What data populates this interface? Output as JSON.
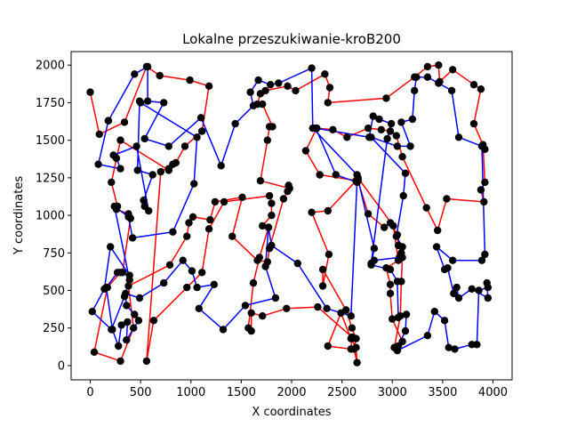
{
  "chart_data": {
    "type": "line",
    "title": "Lokalne przeszukiwanie-kroB200",
    "xlabel": "X coordinates",
    "ylabel": "Y coordinates",
    "xlim": [
      -190,
      4190
    ],
    "ylim": [
      -95,
      2090
    ],
    "xticks": [
      0,
      500,
      1000,
      1500,
      2000,
      2500,
      3000,
      3500,
      4000
    ],
    "yticks": [
      0,
      250,
      500,
      750,
      1000,
      1250,
      1500,
      1750,
      2000
    ],
    "grid": false,
    "legend": "none",
    "marker_color": "#000000",
    "series": [
      {
        "color": "#ff0000",
        "points": [
          [
            0,
            1820
          ],
          [
            90,
            1540
          ],
          [
            340,
            1620
          ],
          [
            560,
            1990
          ],
          [
            690,
            1930
          ],
          [
            990,
            1900
          ],
          [
            1180,
            1860
          ],
          [
            1110,
            1560
          ],
          [
            940,
            1460
          ],
          [
            850,
            1350
          ],
          [
            780,
            1300
          ],
          [
            300,
            1500
          ],
          [
            210,
            1220
          ],
          [
            270,
            1060
          ],
          [
            260,
            1040
          ],
          [
            380,
            1010
          ],
          [
            400,
            980
          ],
          [
            320,
            620
          ],
          [
            300,
            620
          ],
          [
            170,
            520
          ],
          [
            40,
            90
          ],
          [
            300,
            30
          ],
          [
            430,
            250
          ],
          [
            380,
            530
          ],
          [
            790,
            670
          ],
          [
            960,
            860
          ],
          [
            980,
            950
          ],
          [
            1020,
            990
          ],
          [
            1190,
            970
          ],
          [
            1240,
            1090
          ],
          [
            1510,
            1120
          ],
          [
            1410,
            860
          ],
          [
            1660,
            700
          ],
          [
            1760,
            690
          ],
          [
            1780,
            780
          ],
          [
            1920,
            1110
          ],
          [
            1960,
            1160
          ],
          [
            1970,
            1200
          ],
          [
            1980,
            1180
          ],
          [
            1690,
            1230
          ],
          [
            1760,
            1500
          ],
          [
            1780,
            1590
          ],
          [
            1810,
            1590
          ],
          [
            1710,
            1740
          ],
          [
            1660,
            1740
          ],
          [
            1690,
            1810
          ],
          [
            1740,
            1830
          ],
          [
            1960,
            1860
          ],
          [
            2040,
            1830
          ],
          [
            2330,
            1940
          ],
          [
            2380,
            1850
          ],
          [
            2360,
            1750
          ],
          [
            2940,
            1780
          ],
          [
            3220,
            1920
          ],
          [
            3350,
            1990
          ],
          [
            3460,
            2000
          ],
          [
            3470,
            1890
          ],
          [
            3600,
            1970
          ],
          [
            3810,
            1870
          ],
          [
            3880,
            1840
          ],
          [
            3810,
            1610
          ],
          [
            3920,
            1440
          ],
          [
            3900,
            1470
          ],
          [
            3920,
            1220
          ],
          [
            3880,
            1170
          ],
          [
            3910,
            1090
          ],
          [
            3540,
            1110
          ],
          [
            3450,
            900
          ],
          [
            3340,
            1050
          ],
          [
            3100,
            1390
          ],
          [
            3040,
            1530
          ],
          [
            2980,
            1560
          ],
          [
            2890,
            1570
          ],
          [
            2760,
            1580
          ],
          [
            2550,
            1520
          ],
          [
            2410,
            1570
          ],
          [
            2250,
            1580
          ],
          [
            2140,
            1430
          ],
          [
            2280,
            1270
          ],
          [
            2660,
            1230
          ],
          [
            2760,
            1010
          ],
          [
            2920,
            920
          ],
          [
            2980,
            950
          ],
          [
            3050,
            870
          ],
          [
            3060,
            800
          ],
          [
            3090,
            750
          ],
          [
            3100,
            720
          ],
          [
            3090,
            560
          ],
          [
            3080,
            330
          ],
          [
            3020,
            120
          ],
          [
            3100,
            160
          ],
          [
            3000,
            310
          ],
          [
            2980,
            480
          ],
          [
            2980,
            540
          ],
          [
            2940,
            650
          ],
          [
            3060,
            700
          ],
          [
            3010,
            930
          ],
          [
            2660,
            1250
          ],
          [
            2640,
            1230
          ],
          [
            2360,
            1030
          ],
          [
            2200,
            1020
          ],
          [
            2370,
            740
          ],
          [
            2310,
            530
          ],
          [
            2310,
            640
          ],
          [
            2540,
            370
          ],
          [
            2600,
            250
          ],
          [
            2640,
            180
          ],
          [
            2620,
            110
          ],
          [
            2650,
            20
          ],
          [
            2640,
            120
          ],
          [
            2590,
            180
          ],
          [
            2490,
            350
          ],
          [
            2360,
            130
          ],
          [
            2590,
            110
          ],
          [
            2600,
            190
          ],
          [
            2260,
            390
          ],
          [
            1950,
            380
          ],
          [
            1710,
            330
          ],
          [
            1600,
            350
          ],
          [
            1600,
            230
          ],
          [
            1570,
            250
          ],
          [
            1620,
            550
          ],
          [
            1680,
            720
          ],
          [
            1770,
            920
          ],
          [
            1710,
            930
          ],
          [
            1800,
            1000
          ],
          [
            1800,
            1080
          ],
          [
            1780,
            1130
          ],
          [
            1330,
            1090
          ],
          [
            1180,
            910
          ],
          [
            1110,
            620
          ],
          [
            960,
            520
          ],
          [
            630,
            300
          ],
          [
            560,
            30
          ],
          [
            700,
            1290
          ],
          [
            820,
            1340
          ],
          [
            780,
            1310
          ]
        ]
      },
      {
        "color": "#0000ff",
        "points": [
          [
            180,
            1630
          ],
          [
            440,
            1940
          ],
          [
            570,
            1990
          ],
          [
            570,
            1760
          ],
          [
            730,
            1750
          ],
          [
            540,
            1510
          ],
          [
            780,
            1460
          ],
          [
            1100,
            1650
          ],
          [
            1300,
            1330
          ],
          [
            1440,
            1610
          ],
          [
            1620,
            1730
          ],
          [
            1590,
            1820
          ],
          [
            1670,
            1900
          ],
          [
            1790,
            1870
          ],
          [
            1870,
            1880
          ],
          [
            2200,
            1980
          ],
          [
            2210,
            1580
          ],
          [
            2650,
            1270
          ],
          [
            2660,
            1240
          ],
          [
            2820,
            780
          ],
          [
            2790,
            670
          ],
          [
            2980,
            640
          ],
          [
            3050,
            560
          ],
          [
            3060,
            320
          ],
          [
            3140,
            340
          ],
          [
            3130,
            230
          ],
          [
            3060,
            130
          ],
          [
            3050,
            100
          ],
          [
            3350,
            200
          ],
          [
            3420,
            360
          ],
          [
            3520,
            300
          ],
          [
            3560,
            120
          ],
          [
            3620,
            110
          ],
          [
            3790,
            140
          ],
          [
            3840,
            140
          ],
          [
            3860,
            500
          ],
          [
            3950,
            520
          ],
          [
            3940,
            550
          ],
          [
            3950,
            450
          ],
          [
            3790,
            510
          ],
          [
            3660,
            450
          ],
          [
            3640,
            520
          ],
          [
            3610,
            480
          ],
          [
            3550,
            650
          ],
          [
            3520,
            640
          ],
          [
            3440,
            790
          ],
          [
            3600,
            700
          ],
          [
            3890,
            700
          ],
          [
            3920,
            740
          ],
          [
            3890,
            1460
          ],
          [
            3660,
            1520
          ],
          [
            3590,
            1830
          ],
          [
            3460,
            1880
          ],
          [
            3350,
            1920
          ],
          [
            3240,
            1920
          ],
          [
            3220,
            1830
          ],
          [
            3200,
            1640
          ],
          [
            3090,
            1620
          ],
          [
            3180,
            1460
          ],
          [
            3050,
            1460
          ],
          [
            2790,
            1520
          ],
          [
            3130,
            1280
          ],
          [
            3110,
            1130
          ],
          [
            3040,
            860
          ],
          [
            3100,
            790
          ],
          [
            3070,
            720
          ],
          [
            2820,
            700
          ],
          [
            2790,
            680
          ],
          [
            2950,
            1510
          ],
          [
            2990,
            1610
          ],
          [
            2870,
            1640
          ],
          [
            2810,
            1660
          ],
          [
            2770,
            1520
          ],
          [
            2240,
            1580
          ],
          [
            2440,
            1270
          ],
          [
            2650,
            1220
          ],
          [
            2590,
            330
          ],
          [
            2350,
            380
          ],
          [
            2060,
            680
          ],
          [
            1800,
            800
          ],
          [
            1770,
            920
          ],
          [
            1740,
            660
          ],
          [
            1840,
            450
          ],
          [
            1540,
            400
          ],
          [
            1320,
            240
          ],
          [
            1080,
            380
          ],
          [
            1230,
            540
          ],
          [
            1060,
            520
          ],
          [
            1010,
            630
          ],
          [
            920,
            700
          ],
          [
            730,
            550
          ],
          [
            490,
            450
          ],
          [
            350,
            480
          ],
          [
            360,
            400
          ],
          [
            440,
            340
          ],
          [
            480,
            300
          ],
          [
            360,
            170
          ],
          [
            370,
            290
          ],
          [
            310,
            270
          ],
          [
            280,
            130
          ],
          [
            220,
            240
          ],
          [
            160,
            520
          ],
          [
            270,
            620
          ],
          [
            390,
            600
          ],
          [
            200,
            790
          ],
          [
            140,
            510
          ],
          [
            20,
            360
          ],
          [
            210,
            240
          ],
          [
            340,
            460
          ],
          [
            390,
            570
          ],
          [
            240,
            1060
          ],
          [
            380,
            990
          ],
          [
            420,
            850
          ],
          [
            820,
            890
          ],
          [
            1030,
            1210
          ],
          [
            1060,
            1520
          ],
          [
            500,
            1750
          ],
          [
            490,
            1760
          ],
          [
            470,
            1300
          ],
          [
            620,
            1270
          ],
          [
            530,
            1100
          ],
          [
            540,
            1060
          ],
          [
            580,
            1030
          ],
          [
            460,
            1460
          ],
          [
            230,
            1400
          ],
          [
            260,
            1380
          ],
          [
            300,
            1310
          ],
          [
            80,
            1340
          ],
          [
            180,
            1630
          ]
        ]
      }
    ]
  }
}
